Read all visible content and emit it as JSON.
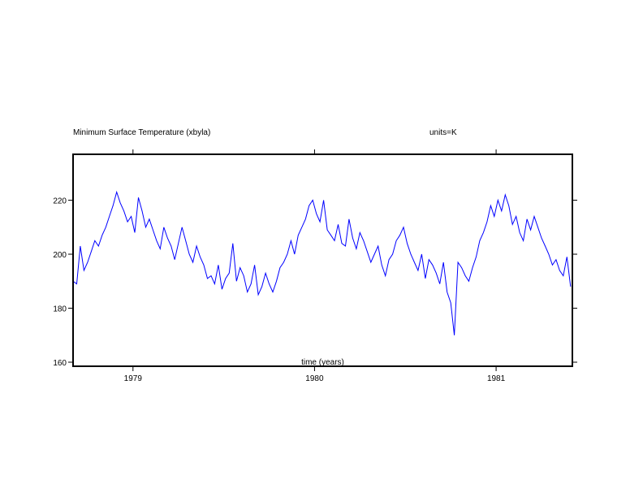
{
  "header": {
    "title": "Minimum Surface Temperature (xbyla)",
    "units": "units=K"
  },
  "chart_data": {
    "type": "line",
    "title": "Minimum Surface Temperature (xbyla)",
    "units_label": "units=K",
    "xlabel": "time (years)",
    "ylabel": "",
    "xlim": [
      1978.67,
      1981.42
    ],
    "ylim": [
      158.5,
      237
    ],
    "x_ticks": [
      1979,
      1980,
      1981
    ],
    "x_tick_labels": [
      "1979",
      "1980",
      "1981"
    ],
    "y_ticks": [
      160,
      180,
      200,
      220
    ],
    "y_tick_labels": [
      "160",
      "180",
      "200",
      "220"
    ],
    "grid": false,
    "legend": "none",
    "colors": {
      "series": "#0000ff",
      "axes": "#000000"
    },
    "series": [
      {
        "x": [
          1978.67,
          1978.69,
          1978.71,
          1978.73,
          1978.75,
          1978.77,
          1978.79,
          1978.81,
          1978.83,
          1978.85,
          1978.87,
          1978.89,
          1978.91,
          1978.93,
          1978.95,
          1978.97,
          1978.99,
          1979.01,
          1979.03,
          1979.05,
          1979.07,
          1979.09,
          1979.11,
          1979.13,
          1979.15,
          1979.17,
          1979.19,
          1979.21,
          1979.23,
          1979.25,
          1979.27,
          1979.29,
          1979.31,
          1979.33,
          1979.35,
          1979.37,
          1979.39,
          1979.41,
          1979.43,
          1979.45,
          1979.47,
          1979.49,
          1979.51,
          1979.53,
          1979.55,
          1979.57,
          1979.59,
          1979.61,
          1979.63,
          1979.65,
          1979.67,
          1979.69,
          1979.71,
          1979.73,
          1979.75,
          1979.77,
          1979.79,
          1979.81,
          1979.83,
          1979.85,
          1979.87,
          1979.89,
          1979.91,
          1979.93,
          1979.95,
          1979.97,
          1979.99,
          1980.01,
          1980.03,
          1980.05,
          1980.07,
          1980.09,
          1980.11,
          1980.13,
          1980.15,
          1980.17,
          1980.19,
          1980.21,
          1980.23,
          1980.25,
          1980.27,
          1980.29,
          1980.31,
          1980.33,
          1980.35,
          1980.37,
          1980.39,
          1980.41,
          1980.43,
          1980.45,
          1980.47,
          1980.49,
          1980.51,
          1980.53,
          1980.55,
          1980.57,
          1980.59,
          1980.61,
          1980.63,
          1980.65,
          1980.67,
          1980.69,
          1980.71,
          1980.73,
          1980.75,
          1980.77,
          1980.79,
          1980.81,
          1980.83,
          1980.85,
          1980.87,
          1980.89,
          1980.91,
          1980.93,
          1980.95,
          1980.97,
          1980.99,
          1981.01,
          1981.03,
          1981.05,
          1981.07,
          1981.09,
          1981.11,
          1981.13,
          1981.15,
          1981.17,
          1981.19,
          1981.21,
          1981.23,
          1981.25,
          1981.27,
          1981.29,
          1981.31,
          1981.33,
          1981.35,
          1981.37,
          1981.39,
          1981.41
        ],
        "values": [
          190,
          189,
          203,
          194,
          197,
          201,
          205,
          203,
          207,
          210,
          214,
          218,
          223,
          219,
          216,
          212,
          214,
          208,
          221,
          216,
          210,
          213,
          209,
          205,
          202,
          210,
          206,
          203,
          198,
          204,
          210,
          205,
          200,
          197,
          203,
          199,
          196,
          191,
          192,
          189,
          196,
          187,
          191,
          193,
          204,
          190,
          195,
          192,
          186,
          189,
          196,
          185,
          188,
          193,
          189,
          186,
          190,
          195,
          197,
          200,
          205,
          200,
          207,
          210,
          213,
          218,
          220,
          215,
          212,
          220,
          209,
          207,
          205,
          211,
          204,
          203,
          213,
          206,
          202,
          208,
          205,
          201,
          197,
          200,
          203,
          196,
          192,
          198,
          200,
          205,
          207,
          210,
          204,
          200,
          197,
          194,
          200,
          191,
          198,
          196,
          193,
          189,
          197,
          186,
          182,
          170,
          197,
          195,
          192,
          190,
          195,
          199,
          205,
          208,
          212,
          218,
          214,
          220,
          216,
          222,
          218,
          211,
          214,
          208,
          205,
          213,
          209,
          214,
          210,
          206,
          203,
          200,
          196,
          198,
          194,
          192,
          199,
          188
        ]
      }
    ]
  }
}
